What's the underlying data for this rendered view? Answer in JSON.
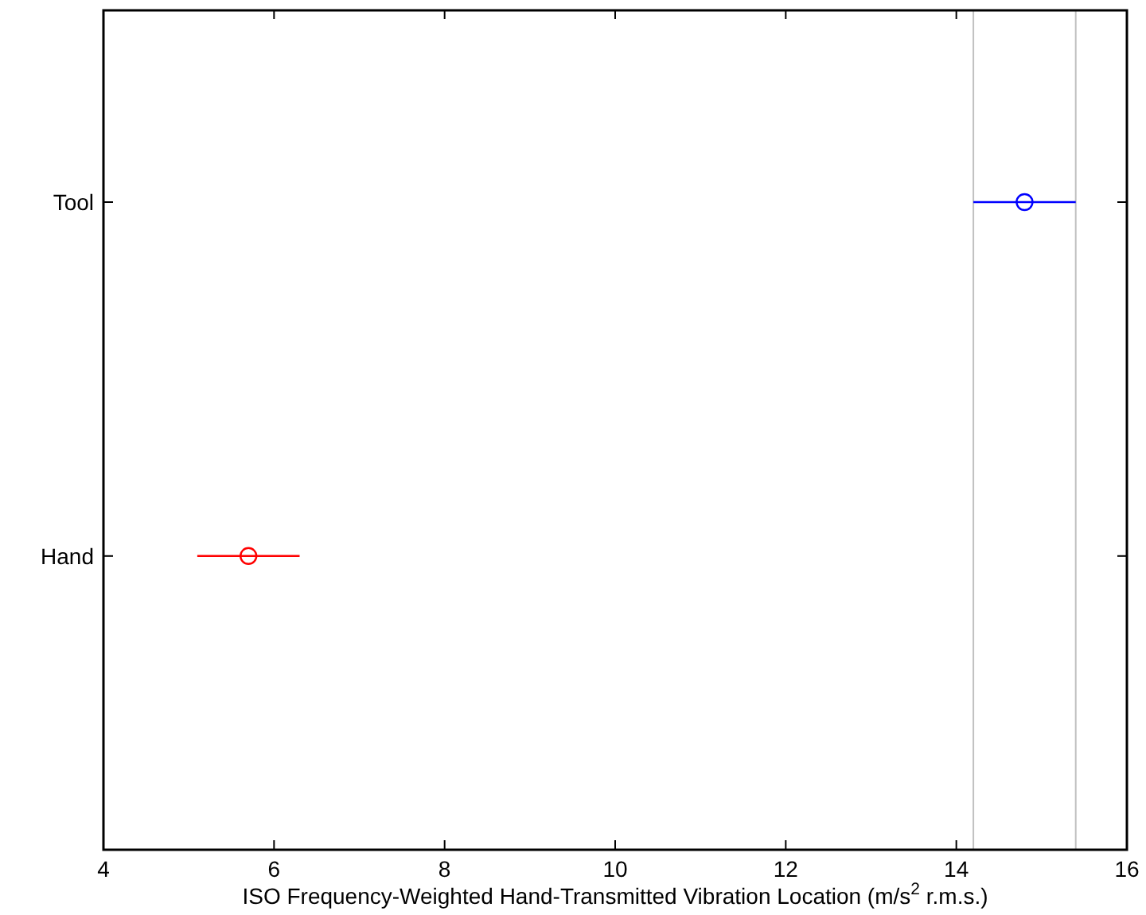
{
  "chart_data": {
    "type": "scatter",
    "orientation": "horizontal",
    "xlabel": "ISO Frequency-Weighted Hand-Transmitted Vibration Location (m/s$^{2}$ r.m.s.)",
    "categories": [
      "Tool",
      "Hand"
    ],
    "values": [
      14.8,
      5.7
    ],
    "colors": [
      "#0000ff",
      "#ff0000"
    ],
    "errors": [
      [
        14.2,
        15.4
      ],
      [
        5.1,
        6.3
      ]
    ],
    "marker": "circle",
    "xlim": [
      4,
      16
    ],
    "xticks": [
      4,
      6,
      8,
      10,
      12,
      14,
      16
    ],
    "ref_lines": [
      {
        "axis": "x",
        "value": 14.2,
        "color": "#c0c0c0"
      },
      {
        "axis": "x",
        "value": 15.4,
        "color": "#c0c0c0"
      }
    ],
    "grid": false
  }
}
